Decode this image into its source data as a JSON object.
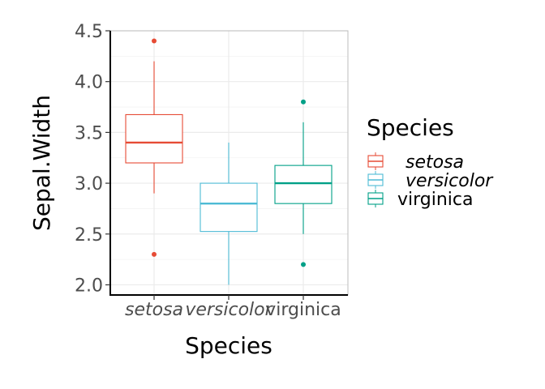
{
  "chart_data": {
    "type": "boxplot",
    "title": "",
    "xlabel": "Species",
    "ylabel": "Sepal.Width",
    "ylim": [
      1.9,
      4.5
    ],
    "yticks": [
      2.0,
      2.5,
      3.0,
      3.5,
      4.0,
      4.5
    ],
    "ytick_labels": [
      "2.0",
      "2.5",
      "3.0",
      "3.5",
      "4.0",
      "4.5"
    ],
    "categories": [
      "setosa",
      "versicolor",
      "virginica"
    ],
    "category_styles": [
      "italic",
      "italic",
      "normal"
    ],
    "colors": [
      "#e64b35",
      "#4dbbd5",
      "#00a087"
    ],
    "boxes": [
      {
        "name": "setosa",
        "q1": 3.2,
        "median": 3.4,
        "q3": 3.675,
        "whisker_low": 2.9,
        "whisker_high": 4.2,
        "outliers": [
          4.4,
          2.3
        ]
      },
      {
        "name": "versicolor",
        "q1": 2.525,
        "median": 2.8,
        "q3": 3.0,
        "whisker_low": 2.0,
        "whisker_high": 3.4,
        "outliers": []
      },
      {
        "name": "virginica",
        "q1": 2.8,
        "median": 3.0,
        "q3": 3.175,
        "whisker_low": 2.5,
        "whisker_high": 3.6,
        "outliers": [
          3.8,
          2.2
        ]
      }
    ],
    "legend": {
      "title": "Species",
      "position": "right",
      "entries": [
        {
          "label": "setosa",
          "style": "italic"
        },
        {
          "label": "versicolor",
          "style": "italic"
        },
        {
          "label": "virginica",
          "style": "normal"
        }
      ]
    },
    "grid": true
  }
}
